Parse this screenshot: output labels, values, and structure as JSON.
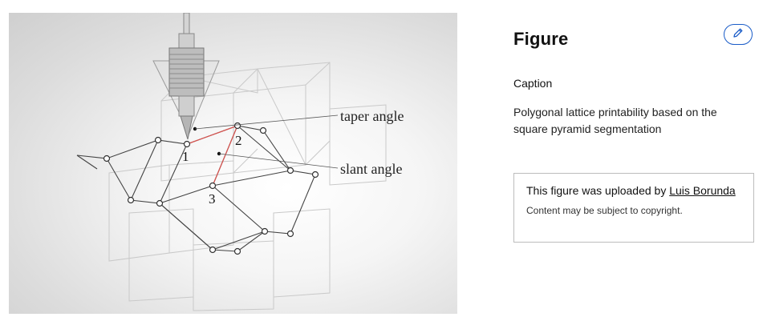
{
  "figure": {
    "labels": {
      "taper_angle": "taper angle",
      "slant_angle": "slant angle",
      "point_1": "1",
      "point_2": "2",
      "point_3": "3"
    }
  },
  "panel": {
    "title": "Figure",
    "edit_icon": "pencil-icon",
    "caption_heading": "Caption",
    "caption_text": "Polygonal lattice printability based on the square pyramid segmentation",
    "upload_prefix": "This figure was uploaded by ",
    "uploader_name": "Luis Borunda",
    "copyright_note": "Content may be subject to copyright."
  },
  "colors": {
    "accent": "#1a5cc8",
    "highlight_line": "#d9534f"
  }
}
